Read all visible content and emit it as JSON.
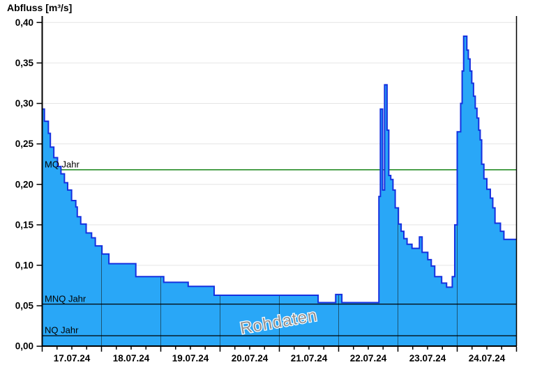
{
  "title": "Abfluss [m³/s]",
  "watermark": "Rohdaten",
  "colors": {
    "area_fill": "#29a7f7",
    "area_outline": "#1530e0",
    "grid_horizontal": "#e4e4e4",
    "grid_vertical_in_area": "#1d5574",
    "mq_line": "#007800",
    "mnq_line": "#000000",
    "nq_line": "#000000",
    "axis": "#000000",
    "watermark_fill": "#909090",
    "watermark_halo": "#ffffff"
  },
  "chart_data": {
    "type": "area",
    "title": "Abfluss [m³/s]",
    "ylabel": "Abfluss [m³/s]",
    "series_name": "Rohdaten",
    "ylim": [
      0,
      0.4
    ],
    "ytick_step": 0.05,
    "ytick_values": [
      0,
      0.05,
      0.1,
      0.15,
      0.2,
      0.25,
      0.3,
      0.35,
      0.4
    ],
    "ytick_labels": [
      "0,00",
      "0,05",
      "0,10",
      "0,15",
      "0,20",
      "0,25",
      "0,30",
      "0,35",
      "0,40"
    ],
    "x_day_labels": [
      "17.07.24",
      "18.07.24",
      "19.07.24",
      "20.07.24",
      "21.07.24",
      "22.07.24",
      "23.07.24",
      "24.07.24"
    ],
    "x_range_hours": [
      0,
      192
    ],
    "x_minor_tick_hours": 6,
    "grid": "horizontal-light, vertical day lines only inside area",
    "legend_position": "none",
    "reference_lines": [
      {
        "label": "MQ Jahr",
        "value": 0.218,
        "color": "#007800",
        "above_area": false
      },
      {
        "label": "MNQ Jahr",
        "value": 0.052,
        "color": "#000000",
        "above_area": true
      },
      {
        "label": "NQ Jahr",
        "value": 0.013,
        "color": "#000000",
        "above_area": true
      }
    ],
    "steps_hours_value": [
      [
        0.0,
        0.293
      ],
      [
        0.9,
        0.278
      ],
      [
        2.5,
        0.263
      ],
      [
        3.3,
        0.246
      ],
      [
        4.7,
        0.233
      ],
      [
        6.2,
        0.222
      ],
      [
        7.6,
        0.213
      ],
      [
        9.0,
        0.202
      ],
      [
        10.3,
        0.193
      ],
      [
        11.9,
        0.18
      ],
      [
        13.6,
        0.172
      ],
      [
        14.2,
        0.16
      ],
      [
        15.6,
        0.151
      ],
      [
        17.8,
        0.14
      ],
      [
        20.0,
        0.134
      ],
      [
        21.5,
        0.124
      ],
      [
        24.2,
        0.114
      ],
      [
        27.0,
        0.102
      ],
      [
        37.9,
        0.086
      ],
      [
        49.2,
        0.079
      ],
      [
        59.1,
        0.074
      ],
      [
        69.6,
        0.063
      ],
      [
        111.7,
        0.054
      ],
      [
        118.8,
        0.064
      ],
      [
        121.3,
        0.054
      ],
      [
        136.3,
        0.185
      ],
      [
        136.9,
        0.293
      ],
      [
        137.8,
        0.193
      ],
      [
        138.6,
        0.323
      ],
      [
        139.6,
        0.267
      ],
      [
        140.3,
        0.211
      ],
      [
        141.1,
        0.206
      ],
      [
        142.0,
        0.193
      ],
      [
        142.9,
        0.171
      ],
      [
        144.2,
        0.151
      ],
      [
        145.3,
        0.142
      ],
      [
        146.4,
        0.133
      ],
      [
        147.7,
        0.126
      ],
      [
        149.7,
        0.121
      ],
      [
        152.7,
        0.135
      ],
      [
        153.8,
        0.116
      ],
      [
        156.1,
        0.107
      ],
      [
        157.5,
        0.099
      ],
      [
        158.9,
        0.086
      ],
      [
        161.7,
        0.078
      ],
      [
        163.7,
        0.073
      ],
      [
        166.0,
        0.086
      ],
      [
        167.0,
        0.15
      ],
      [
        168.0,
        0.265
      ],
      [
        169.4,
        0.3
      ],
      [
        170.0,
        0.34
      ],
      [
        170.6,
        0.383
      ],
      [
        171.9,
        0.366
      ],
      [
        172.5,
        0.355
      ],
      [
        173.2,
        0.34
      ],
      [
        173.9,
        0.325
      ],
      [
        174.6,
        0.309
      ],
      [
        175.3,
        0.294
      ],
      [
        176.0,
        0.282
      ],
      [
        176.7,
        0.267
      ],
      [
        177.3,
        0.255
      ],
      [
        177.9,
        0.225
      ],
      [
        178.8,
        0.207
      ],
      [
        180.0,
        0.194
      ],
      [
        181.4,
        0.183
      ],
      [
        182.4,
        0.171
      ],
      [
        183.3,
        0.152
      ],
      [
        185.5,
        0.142
      ],
      [
        186.9,
        0.132
      ],
      [
        192.0,
        0.132
      ]
    ]
  }
}
